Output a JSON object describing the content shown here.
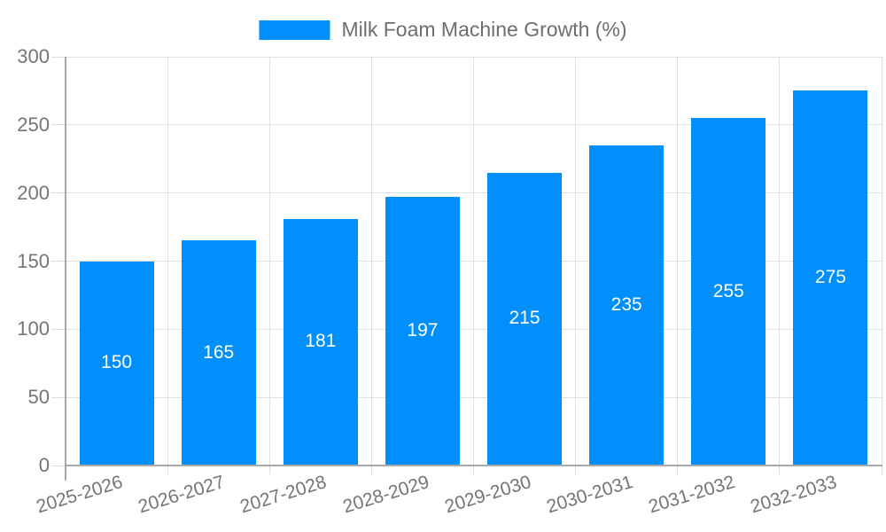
{
  "chart_data": {
    "type": "bar",
    "title": "Milk Foam Machine Growth (%)",
    "categories": [
      "2025-2026",
      "2026-2027",
      "2027-2028",
      "2028-2029",
      "2029-2030",
      "2030-2031",
      "2031-2032",
      "2032-2033"
    ],
    "values": [
      150,
      165,
      181,
      197,
      215,
      235,
      255,
      275
    ],
    "value_labels": [
      "150",
      "165",
      "181",
      "197",
      "215",
      "235",
      "255",
      "275"
    ],
    "xlabel": "",
    "ylabel": "",
    "ylim": [
      0,
      300
    ],
    "yticks": [
      0,
      50,
      100,
      150,
      200,
      250,
      300
    ],
    "grid": true,
    "legend_position": "top",
    "x_label_rotation_deg": -17,
    "colors": {
      "bar": "#008FFB",
      "axis_text": "#757575",
      "legend_text": "#6e6e6e",
      "value_text": "#ffffff",
      "gridline": "#e0e0e0",
      "tick": "#dcdcdc",
      "axis_line": "#a8a8a8",
      "background": "#ffffff"
    }
  }
}
